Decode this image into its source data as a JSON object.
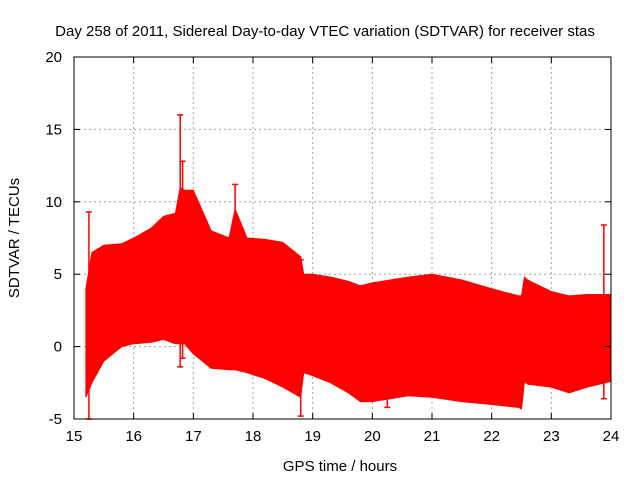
{
  "chart_data": {
    "type": "line",
    "style": "error-band",
    "title": "Day 258 of 2011, Sidereal Day-to-day VTEC variation (SDTVAR) for receiver stas",
    "xlabel": "GPS time / hours",
    "ylabel": "SDTVAR / TECUs",
    "xlim": [
      15,
      24
    ],
    "ylim": [
      -5,
      20
    ],
    "xticks": [
      15,
      16,
      17,
      18,
      19,
      20,
      21,
      22,
      23,
      24
    ],
    "yticks": [
      -5,
      0,
      5,
      10,
      15,
      20
    ],
    "grid": true,
    "series_color": "#ff0000",
    "band": {
      "x": [
        15.2,
        15.3,
        15.5,
        15.8,
        16.0,
        16.3,
        16.5,
        16.7,
        16.78,
        16.85,
        17.0,
        17.3,
        17.6,
        17.7,
        17.9,
        18.2,
        18.5,
        18.8,
        18.85,
        19.0,
        19.3,
        19.6,
        19.8,
        20.0,
        20.3,
        20.6,
        21.0,
        21.5,
        22.0,
        22.45,
        22.5,
        22.55,
        22.6,
        23.0,
        23.3,
        23.6,
        24.0
      ],
      "upper": [
        4.0,
        6.5,
        7.0,
        7.1,
        7.5,
        8.2,
        9.0,
        9.2,
        11.0,
        10.8,
        10.8,
        8.0,
        7.5,
        9.5,
        7.5,
        7.4,
        7.2,
        6.2,
        5.0,
        5.0,
        4.8,
        4.5,
        4.2,
        4.4,
        4.6,
        4.8,
        5.0,
        4.6,
        4.0,
        3.5,
        3.5,
        4.8,
        4.6,
        3.8,
        3.5,
        3.6,
        3.6
      ],
      "lower": [
        -3.5,
        -2.5,
        -1.0,
        0.0,
        0.2,
        0.3,
        0.5,
        0.2,
        0.2,
        0.2,
        -0.5,
        -1.5,
        -1.6,
        -1.6,
        -1.8,
        -2.2,
        -2.8,
        -3.5,
        -1.8,
        -2.0,
        -2.5,
        -3.2,
        -3.8,
        -3.8,
        -3.6,
        -3.4,
        -3.5,
        -3.8,
        -4.0,
        -4.2,
        -4.3,
        -2.4,
        -2.6,
        -2.8,
        -3.2,
        -2.8,
        -2.4
      ]
    },
    "spikes": [
      {
        "x": 15.25,
        "low": -5.0,
        "high": 9.3
      },
      {
        "x": 16.78,
        "low": -1.4,
        "high": 16.0
      },
      {
        "x": 16.82,
        "low": -0.8,
        "high": 12.8
      },
      {
        "x": 17.7,
        "low": 7.0,
        "high": 11.2
      },
      {
        "x": 18.8,
        "low": -4.8,
        "high": 6.0
      },
      {
        "x": 20.25,
        "low": -4.2,
        "high": 2.0
      },
      {
        "x": 23.88,
        "low": -3.6,
        "high": 8.4
      }
    ]
  }
}
